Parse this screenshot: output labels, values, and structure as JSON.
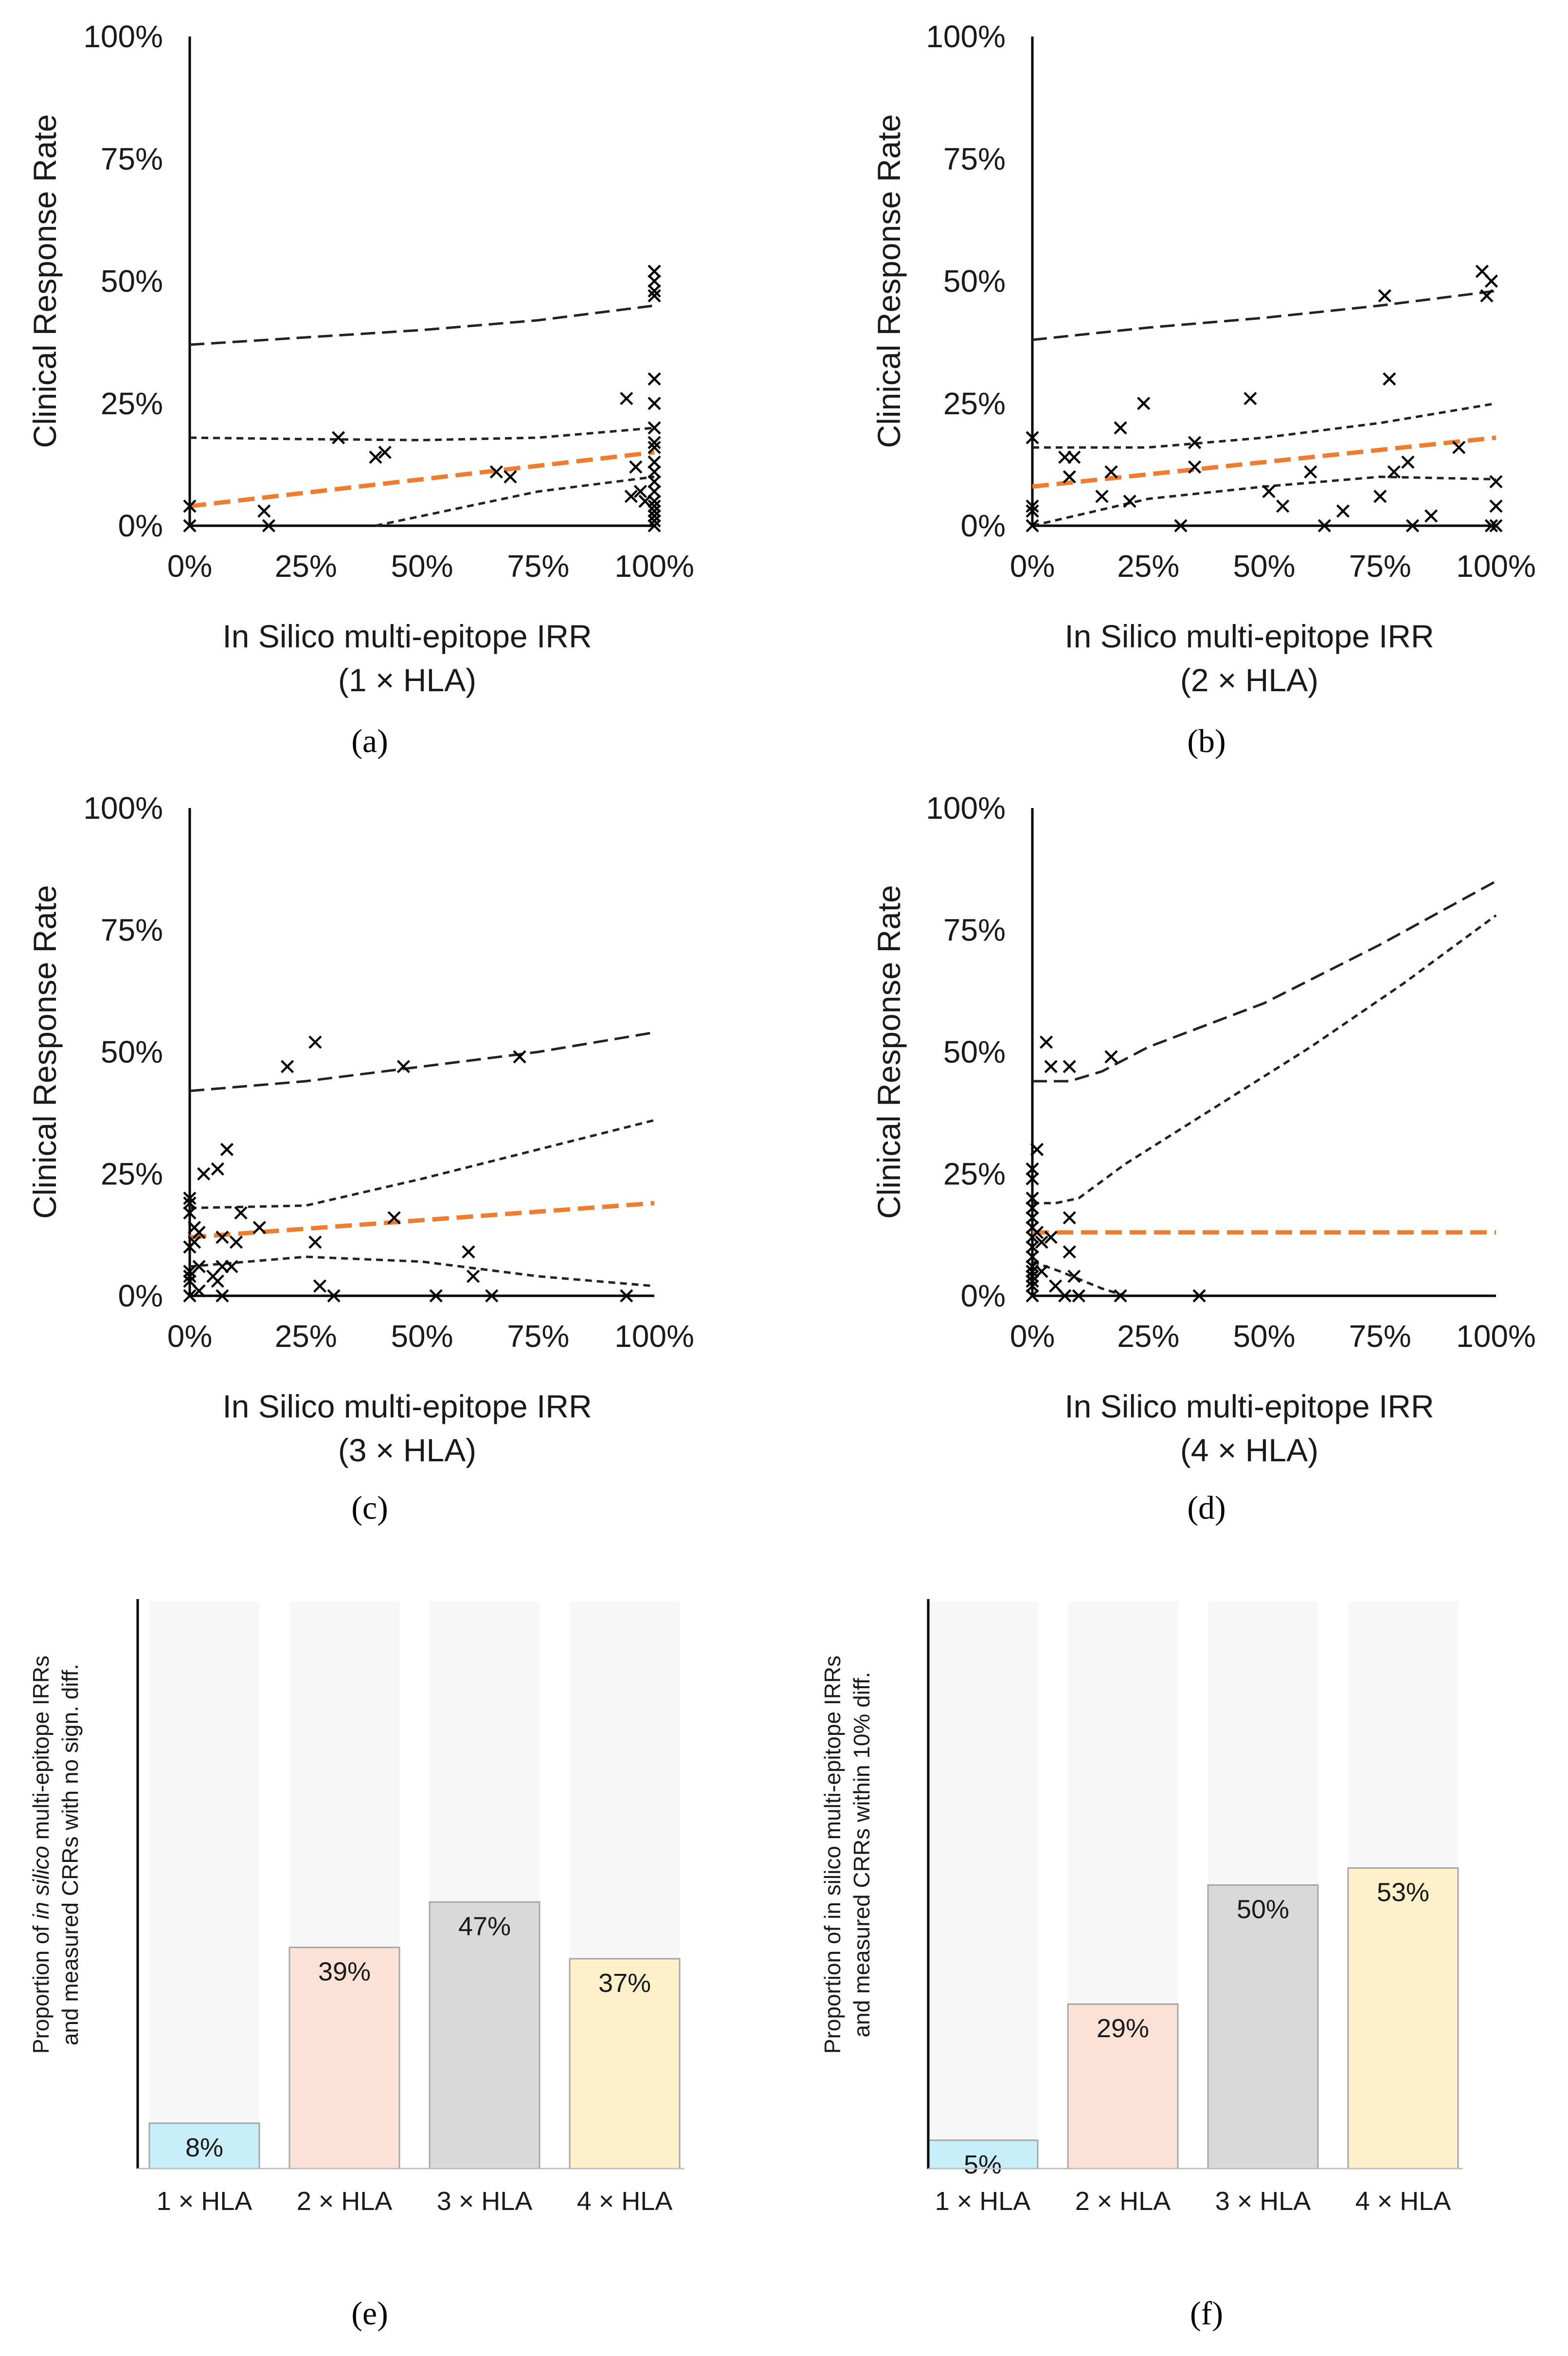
{
  "chart_data": [
    {
      "panel": "a",
      "type": "scatter",
      "xlabel_line1": "In Silico multi-epitope IRR",
      "xlabel_line2": "(1 × HLA)",
      "ylabel": "Clinical Response Rate",
      "xlim": [
        0,
        1
      ],
      "ylim": [
        0,
        1
      ],
      "x_ticks": [
        "0%",
        "25%",
        "50%",
        "75%",
        "100%"
      ],
      "y_ticks": [
        "0%",
        "25%",
        "50%",
        "75%",
        "100%"
      ],
      "points": [
        [
          0,
          0.04
        ],
        [
          0,
          0
        ],
        [
          0.16,
          0.03
        ],
        [
          0.17,
          0
        ],
        [
          0.32,
          0.18
        ],
        [
          0.4,
          0.14
        ],
        [
          0.42,
          0.15
        ],
        [
          0.66,
          0.11
        ],
        [
          0.69,
          0.1
        ],
        [
          0.94,
          0.26
        ],
        [
          0.95,
          0.06
        ],
        [
          0.96,
          0.12
        ],
        [
          0.97,
          0.07
        ],
        [
          0.98,
          0.05
        ],
        [
          1,
          0.52
        ],
        [
          1,
          0.5
        ],
        [
          1,
          0.48
        ],
        [
          1,
          0.47
        ],
        [
          1,
          0.3
        ],
        [
          1,
          0.25
        ],
        [
          1,
          0.2
        ],
        [
          1,
          0.17
        ],
        [
          1,
          0.16
        ],
        [
          1,
          0.13
        ],
        [
          1,
          0.11
        ],
        [
          1,
          0.09
        ],
        [
          1,
          0.07
        ],
        [
          1,
          0.05
        ],
        [
          1,
          0.04
        ],
        [
          1,
          0.03
        ],
        [
          1,
          0.02
        ],
        [
          1,
          0.01
        ],
        [
          1,
          0
        ]
      ],
      "fit_line": [
        [
          0,
          0.04
        ],
        [
          1,
          0.15
        ]
      ],
      "ci_upper": [
        [
          0,
          0.18
        ],
        [
          0.25,
          0.177
        ],
        [
          0.5,
          0.175
        ],
        [
          0.75,
          0.18
        ],
        [
          1,
          0.2
        ]
      ],
      "ci_lower": [
        [
          0.4,
          0
        ],
        [
          0.5,
          0.02
        ],
        [
          0.75,
          0.07
        ],
        [
          1,
          0.1
        ]
      ],
      "pred_upper": [
        [
          0,
          0.37
        ],
        [
          0.25,
          0.385
        ],
        [
          0.5,
          0.4
        ],
        [
          0.75,
          0.42
        ],
        [
          1,
          0.45
        ]
      ]
    },
    {
      "panel": "b",
      "type": "scatter",
      "xlabel_line1": "In Silico multi-epitope IRR",
      "xlabel_line2": "(2 × HLA)",
      "ylabel": "Clinical Response Rate",
      "xlim": [
        0,
        1
      ],
      "ylim": [
        0,
        1
      ],
      "x_ticks": [
        "0%",
        "25%",
        "50%",
        "75%",
        "100%"
      ],
      "y_ticks": [
        "0%",
        "25%",
        "50%",
        "75%",
        "100%"
      ],
      "points": [
        [
          0,
          0.18
        ],
        [
          0,
          0.04
        ],
        [
          0,
          0.03
        ],
        [
          0,
          0
        ],
        [
          0.07,
          0.14
        ],
        [
          0.08,
          0.1
        ],
        [
          0.09,
          0.14
        ],
        [
          0.15,
          0.06
        ],
        [
          0.17,
          0.11
        ],
        [
          0.19,
          0.2
        ],
        [
          0.21,
          0.05
        ],
        [
          0.24,
          0.25
        ],
        [
          0.32,
          0
        ],
        [
          0.35,
          0.17
        ],
        [
          0.35,
          0.12
        ],
        [
          0.47,
          0.26
        ],
        [
          0.51,
          0.07
        ],
        [
          0.54,
          0.04
        ],
        [
          0.6,
          0.11
        ],
        [
          0.63,
          0
        ],
        [
          0.67,
          0.03
        ],
        [
          0.75,
          0.06
        ],
        [
          0.76,
          0.47
        ],
        [
          0.77,
          0.3
        ],
        [
          0.78,
          0.11
        ],
        [
          0.81,
          0.13
        ],
        [
          0.82,
          0
        ],
        [
          0.86,
          0.02
        ],
        [
          0.92,
          0.16
        ],
        [
          0.97,
          0.52
        ],
        [
          0.98,
          0.47
        ],
        [
          0.99,
          0.5
        ],
        [
          0.99,
          0
        ],
        [
          1,
          0.09
        ],
        [
          1,
          0.04
        ],
        [
          1,
          0
        ]
      ],
      "fit_line": [
        [
          0,
          0.08
        ],
        [
          1,
          0.18
        ]
      ],
      "ci_upper": [
        [
          0,
          0.16
        ],
        [
          0.25,
          0.16
        ],
        [
          0.5,
          0.18
        ],
        [
          0.75,
          0.21
        ],
        [
          1,
          0.25
        ]
      ],
      "ci_lower": [
        [
          0,
          0
        ],
        [
          0.25,
          0.055
        ],
        [
          0.5,
          0.08
        ],
        [
          0.75,
          0.1
        ],
        [
          1,
          0.095
        ]
      ],
      "pred_upper": [
        [
          0,
          0.38
        ],
        [
          0.25,
          0.405
        ],
        [
          0.5,
          0.425
        ],
        [
          0.75,
          0.45
        ],
        [
          1,
          0.48
        ]
      ]
    },
    {
      "panel": "c",
      "type": "scatter",
      "xlabel_line1": "In Silico multi-epitope IRR",
      "xlabel_line2": "(3 × HLA)",
      "ylabel": "Clinical Response Rate",
      "xlim": [
        0,
        1
      ],
      "ylim": [
        0,
        1
      ],
      "x_ticks": [
        "0%",
        "25%",
        "50%",
        "75%",
        "100%"
      ],
      "y_ticks": [
        "0%",
        "25%",
        "50%",
        "75%",
        "100%"
      ],
      "points": [
        [
          0,
          0.2
        ],
        [
          0,
          0.19
        ],
        [
          0,
          0.17
        ],
        [
          0,
          0.1
        ],
        [
          0,
          0.05
        ],
        [
          0,
          0.04
        ],
        [
          0,
          0.03
        ],
        [
          0,
          0
        ],
        [
          0.01,
          0.14
        ],
        [
          0.01,
          0.11
        ],
        [
          0.02,
          0.13
        ],
        [
          0.02,
          0.06
        ],
        [
          0.02,
          0.01
        ],
        [
          0.03,
          0.25
        ],
        [
          0.05,
          0.04
        ],
        [
          0.06,
          0.03
        ],
        [
          0.06,
          0.26
        ],
        [
          0.07,
          0.12
        ],
        [
          0.07,
          0.06
        ],
        [
          0.07,
          0
        ],
        [
          0.08,
          0.3
        ],
        [
          0.09,
          0.06
        ],
        [
          0.1,
          0.11
        ],
        [
          0.11,
          0.17
        ],
        [
          0.15,
          0.14
        ],
        [
          0.21,
          0.47
        ],
        [
          0.27,
          0.52
        ],
        [
          0.27,
          0.11
        ],
        [
          0.28,
          0.02
        ],
        [
          0.31,
          0
        ],
        [
          0.44,
          0.16
        ],
        [
          0.46,
          0.47
        ],
        [
          0.53,
          0
        ],
        [
          0.6,
          0.09
        ],
        [
          0.61,
          0.04
        ],
        [
          0.65,
          0
        ],
        [
          0.71,
          0.49
        ],
        [
          0.94,
          0
        ]
      ],
      "fit_line": [
        [
          0,
          0.12
        ],
        [
          1,
          0.19
        ]
      ],
      "ci_upper": [
        [
          0,
          0.18
        ],
        [
          0.25,
          0.185
        ],
        [
          0.5,
          0.24
        ],
        [
          0.75,
          0.3
        ],
        [
          1,
          0.36
        ]
      ],
      "ci_lower": [
        [
          0,
          0.06
        ],
        [
          0.25,
          0.08
        ],
        [
          0.5,
          0.07
        ],
        [
          0.75,
          0.04
        ],
        [
          1,
          0.02
        ]
      ],
      "pred_upper": [
        [
          0,
          0.42
        ],
        [
          0.25,
          0.44
        ],
        [
          0.5,
          0.47
        ],
        [
          0.75,
          0.5
        ],
        [
          1,
          0.54
        ]
      ]
    },
    {
      "panel": "d",
      "type": "scatter",
      "xlabel_line1": "In Silico multi-epitope IRR",
      "xlabel_line2": "(4 × HLA)",
      "ylabel": "Clinical Response Rate",
      "xlim": [
        0,
        1
      ],
      "ylim": [
        0,
        1
      ],
      "x_ticks": [
        "0%",
        "25%",
        "50%",
        "75%",
        "100%"
      ],
      "y_ticks": [
        "0%",
        "25%",
        "50%",
        "75%",
        "100%"
      ],
      "points": [
        [
          0,
          0.26
        ],
        [
          0,
          0.24
        ],
        [
          0,
          0.2
        ],
        [
          0,
          0.18
        ],
        [
          0,
          0.16
        ],
        [
          0,
          0.14
        ],
        [
          0,
          0.12
        ],
        [
          0,
          0.1
        ],
        [
          0,
          0.08
        ],
        [
          0,
          0.06
        ],
        [
          0,
          0.05
        ],
        [
          0,
          0.04
        ],
        [
          0,
          0.03
        ],
        [
          0,
          0.02
        ],
        [
          0,
          0
        ],
        [
          0.01,
          0.3
        ],
        [
          0.01,
          0.13
        ],
        [
          0.02,
          0.11
        ],
        [
          0.02,
          0.05
        ],
        [
          0.03,
          0.52
        ],
        [
          0.04,
          0.47
        ],
        [
          0.04,
          0.12
        ],
        [
          0.05,
          0.02
        ],
        [
          0.07,
          0
        ],
        [
          0.08,
          0.47
        ],
        [
          0.08,
          0.16
        ],
        [
          0.08,
          0.09
        ],
        [
          0.09,
          0.04
        ],
        [
          0.1,
          0
        ],
        [
          0.17,
          0.49
        ],
        [
          0.19,
          0
        ],
        [
          0.36,
          0
        ]
      ],
      "fit_line": [
        [
          0,
          0.13
        ],
        [
          1,
          0.13
        ]
      ],
      "ci_upper": [
        [
          0,
          0.19
        ],
        [
          0.05,
          0.19
        ],
        [
          0.1,
          0.2
        ],
        [
          0.2,
          0.27
        ],
        [
          0.4,
          0.39
        ],
        [
          0.6,
          0.51
        ],
        [
          0.8,
          0.64
        ],
        [
          1,
          0.78
        ]
      ],
      "ci_lower": [
        [
          0,
          0.07
        ],
        [
          0.06,
          0.05
        ],
        [
          0.15,
          0.015
        ],
        [
          0.2,
          0
        ]
      ],
      "pred_upper": [
        [
          0,
          0.44
        ],
        [
          0.08,
          0.44
        ],
        [
          0.15,
          0.46
        ],
        [
          0.25,
          0.51
        ],
        [
          0.5,
          0.6
        ],
        [
          0.75,
          0.72
        ],
        [
          1,
          0.85
        ]
      ]
    },
    {
      "panel": "e",
      "type": "bar",
      "ylabel_line1": "Proportion of in silico multi-epitope IRRs",
      "ylabel_line1_italic": "in silico",
      "ylabel_line2": "and measured CRRs with no sign. diff.",
      "categories": [
        "1 × HLA",
        "2 × HLA",
        "3 × HLA",
        "4 × HLA"
      ],
      "values": [
        8,
        39,
        47,
        37
      ],
      "value_labels": [
        "8%",
        "39%",
        "47%",
        "37%"
      ],
      "colors": [
        "#c8eefa",
        "#fbe2d6",
        "#d9d9d9",
        "#fff0cc"
      ],
      "ylim": [
        0,
        100
      ]
    },
    {
      "panel": "f",
      "type": "bar",
      "ylabel_line1": "Proportion of in silico multi-epitope IRRs",
      "ylabel_line2": "and measured CRRs within 10% diff.",
      "categories": [
        "1 × HLA",
        "2 × HLA",
        "3 × HLA",
        "4 × HLA"
      ],
      "values": [
        5,
        29,
        50,
        53
      ],
      "value_labels": [
        "5%",
        "29%",
        "50%",
        "53%"
      ],
      "colors": [
        "#c8eefa",
        "#fbe2d6",
        "#d9d9d9",
        "#fff0cc"
      ],
      "ylim": [
        0,
        100
      ]
    }
  ],
  "panel_labels": [
    "(a)",
    "(b)",
    "(c)",
    "(d)",
    "(e)",
    "(f)"
  ],
  "colors": {
    "fit": "#ed7d31",
    "bands": "#222222",
    "background_bar": "#f7f7f7"
  }
}
